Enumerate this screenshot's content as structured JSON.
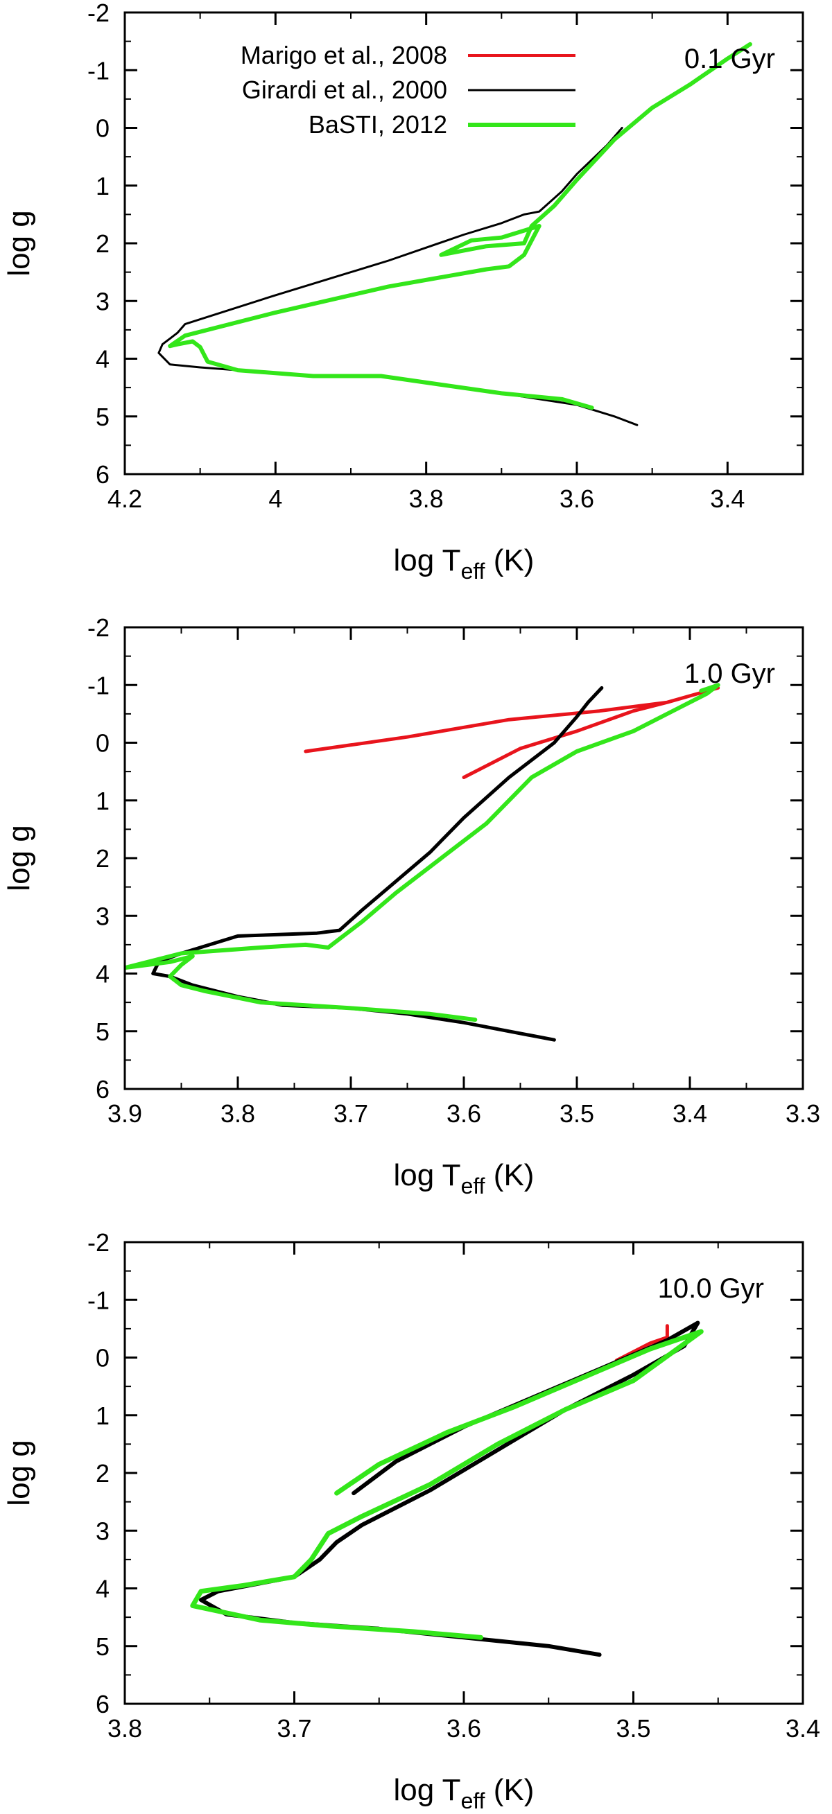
{
  "colors": {
    "marigo": "#e8141c",
    "girardi": "#000000",
    "basti": "#33e61a"
  },
  "legend": [
    {
      "label": "Marigo et al., 2008",
      "color": "#e8141c"
    },
    {
      "label": "Girardi et al., 2000",
      "color": "#000000"
    },
    {
      "label": "BaSTI, 2012",
      "color": "#33e61a"
    }
  ],
  "chart_data": [
    {
      "type": "line",
      "annotation": "0.1 Gyr",
      "xlabel": {
        "main": "log T",
        "sub": "eff",
        "unit": " (K)"
      },
      "ylabel": "log g",
      "xlim": [
        4.2,
        3.3
      ],
      "ylim": [
        -2,
        6
      ],
      "y_inverted": true,
      "xticks": [
        4.2,
        4.0,
        3.8,
        3.6,
        3.4
      ],
      "xtick_labels": [
        "4.2",
        "4",
        "3.8",
        "3.6",
        "3.4"
      ],
      "yticks": [
        -2,
        -1,
        0,
        1,
        2,
        3,
        4,
        5,
        6
      ],
      "ytick_labels": [
        "-2",
        "-1",
        "0",
        "1",
        "2",
        "3",
        "4",
        "5",
        "6"
      ],
      "legend_position": "top",
      "series": [
        {
          "name": "Marigo et al., 2008",
          "width": 4,
          "x": [],
          "y": []
        },
        {
          "name": "Girardi et al., 2000",
          "width": 3,
          "x": [
            3.52,
            3.55,
            3.6,
            3.7,
            3.78,
            3.86,
            3.95,
            4.05,
            4.1,
            4.14,
            4.155,
            4.15,
            4.14,
            4.13,
            4.12,
            4.0,
            3.85,
            3.75,
            3.7,
            3.67,
            3.65,
            3.62,
            3.6,
            3.58,
            3.56,
            3.54
          ],
          "y": [
            5.15,
            5.0,
            4.8,
            4.6,
            4.45,
            4.3,
            4.3,
            4.2,
            4.15,
            4.1,
            3.9,
            3.75,
            3.65,
            3.55,
            3.4,
            2.9,
            2.3,
            1.85,
            1.65,
            1.5,
            1.45,
            1.1,
            0.8,
            0.55,
            0.3,
            0.0
          ]
        },
        {
          "name": "BaSTI, 2012",
          "width": 6,
          "x": [
            3.58,
            3.62,
            3.7,
            3.78,
            3.86,
            3.95,
            4.05,
            4.09,
            4.1,
            4.11,
            4.13,
            4.14,
            4.12,
            4.0,
            3.85,
            3.72,
            3.69,
            3.67,
            3.65,
            3.7,
            3.74,
            3.78,
            3.72,
            3.67,
            3.66,
            3.63,
            3.6,
            3.55,
            3.5,
            3.45,
            3.4,
            3.37
          ],
          "y": [
            4.85,
            4.7,
            4.6,
            4.45,
            4.3,
            4.3,
            4.2,
            4.05,
            3.8,
            3.7,
            3.75,
            3.78,
            3.6,
            3.2,
            2.75,
            2.45,
            2.4,
            2.2,
            1.7,
            1.9,
            1.95,
            2.2,
            2.05,
            2.0,
            1.7,
            1.35,
            0.9,
            0.2,
            -0.35,
            -0.75,
            -1.2,
            -1.45
          ]
        }
      ]
    },
    {
      "type": "line",
      "annotation": "1.0 Gyr",
      "xlabel": {
        "main": "log T",
        "sub": "eff",
        "unit": " (K)"
      },
      "ylabel": "log g",
      "xlim": [
        3.9,
        3.3
      ],
      "ylim": [
        -2,
        6
      ],
      "y_inverted": true,
      "xticks": [
        3.9,
        3.8,
        3.7,
        3.6,
        3.5,
        3.4,
        3.3
      ],
      "xtick_labels": [
        "3.9",
        "3.8",
        "3.7",
        "3.6",
        "3.5",
        "3.4",
        "3.3"
      ],
      "yticks": [
        -2,
        -1,
        0,
        1,
        2,
        3,
        4,
        5,
        6
      ],
      "ytick_labels": [
        "-2",
        "-1",
        "0",
        "1",
        "2",
        "3",
        "4",
        "5",
        "6"
      ],
      "series": [
        {
          "name": "Marigo et al., 2008",
          "width": 5,
          "x": [
            3.74,
            3.65,
            3.56,
            3.48,
            3.42,
            3.375,
            3.42,
            3.45,
            3.5,
            3.55,
            3.6
          ],
          "y": [
            0.15,
            -0.1,
            -0.4,
            -0.55,
            -0.7,
            -0.95,
            -0.7,
            -0.55,
            -0.2,
            0.1,
            0.6
          ]
        },
        {
          "name": "Girardi et al., 2000",
          "width": 5,
          "x": [
            3.52,
            3.56,
            3.6,
            3.65,
            3.7,
            3.76,
            3.8,
            3.84,
            3.86,
            3.875,
            3.87,
            3.85,
            3.8,
            3.73,
            3.71,
            3.69,
            3.66,
            3.63,
            3.6,
            3.56,
            3.52,
            3.5,
            3.49,
            3.478
          ],
          "y": [
            5.15,
            5.0,
            4.85,
            4.7,
            4.6,
            4.55,
            4.4,
            4.2,
            4.05,
            4.0,
            3.8,
            3.65,
            3.35,
            3.3,
            3.25,
            2.9,
            2.4,
            1.9,
            1.3,
            0.6,
            0.0,
            -0.45,
            -0.7,
            -0.95
          ]
        },
        {
          "name": "BaSTI, 2012",
          "width": 6,
          "x": [
            3.59,
            3.63,
            3.7,
            3.78,
            3.83,
            3.85,
            3.86,
            3.85,
            3.84,
            3.86,
            3.9,
            3.85,
            3.78,
            3.74,
            3.72,
            3.71,
            3.69,
            3.66,
            3.62,
            3.58,
            3.54,
            3.5,
            3.45,
            3.41,
            3.385,
            3.375,
            3.39
          ],
          "y": [
            4.8,
            4.7,
            4.6,
            4.5,
            4.3,
            4.2,
            4.05,
            3.85,
            3.7,
            3.8,
            3.9,
            3.65,
            3.55,
            3.5,
            3.55,
            3.4,
            3.1,
            2.6,
            2.0,
            1.4,
            0.6,
            0.15,
            -0.2,
            -0.6,
            -0.85,
            -1.0,
            -0.9
          ]
        }
      ]
    },
    {
      "type": "line",
      "annotation": "10.0 Gyr",
      "xlabel": {
        "main": "log T",
        "sub": "eff",
        "unit": " (K)"
      },
      "ylabel": "log g",
      "xlim": [
        3.8,
        3.4
      ],
      "ylim": [
        -2,
        6
      ],
      "y_inverted": true,
      "xticks": [
        3.8,
        3.7,
        3.6,
        3.5,
        3.4
      ],
      "xtick_labels": [
        "3.8",
        "3.7",
        "3.6",
        "3.5",
        "3.4"
      ],
      "yticks": [
        -2,
        -1,
        0,
        1,
        2,
        3,
        4,
        5,
        6
      ],
      "ytick_labels": [
        "-2",
        "-1",
        "0",
        "1",
        "2",
        "3",
        "4",
        "5",
        "6"
      ],
      "series": [
        {
          "name": "Marigo et al., 2008",
          "width": 5,
          "x": [
            3.51,
            3.49,
            3.48,
            3.48
          ],
          "y": [
            0.05,
            -0.25,
            -0.35,
            -0.55
          ]
        },
        {
          "name": "Girardi et al., 2000",
          "width": 6,
          "x": [
            3.52,
            3.55,
            3.6,
            3.65,
            3.7,
            3.74,
            3.755,
            3.745,
            3.7,
            3.685,
            3.675,
            3.66,
            3.62,
            3.58,
            3.54,
            3.5,
            3.47,
            3.462,
            3.48,
            3.52,
            3.56,
            3.6,
            3.64,
            3.665
          ],
          "y": [
            5.15,
            5.0,
            4.85,
            4.7,
            4.6,
            4.45,
            4.2,
            4.05,
            3.8,
            3.5,
            3.2,
            2.9,
            2.3,
            1.6,
            0.9,
            0.3,
            -0.2,
            -0.6,
            -0.3,
            0.2,
            0.7,
            1.2,
            1.8,
            2.35
          ]
        },
        {
          "name": "BaSTI, 2012",
          "width": 7,
          "x": [
            3.59,
            3.63,
            3.68,
            3.72,
            3.76,
            3.755,
            3.73,
            3.7,
            3.69,
            3.68,
            3.66,
            3.62,
            3.58,
            3.54,
            3.5,
            3.46,
            3.49,
            3.53,
            3.57,
            3.61,
            3.65,
            3.675
          ],
          "y": [
            4.85,
            4.75,
            4.65,
            4.55,
            4.3,
            4.05,
            3.95,
            3.8,
            3.5,
            3.05,
            2.75,
            2.2,
            1.5,
            0.9,
            0.4,
            -0.45,
            -0.15,
            0.35,
            0.85,
            1.3,
            1.85,
            2.35
          ]
        }
      ]
    }
  ]
}
